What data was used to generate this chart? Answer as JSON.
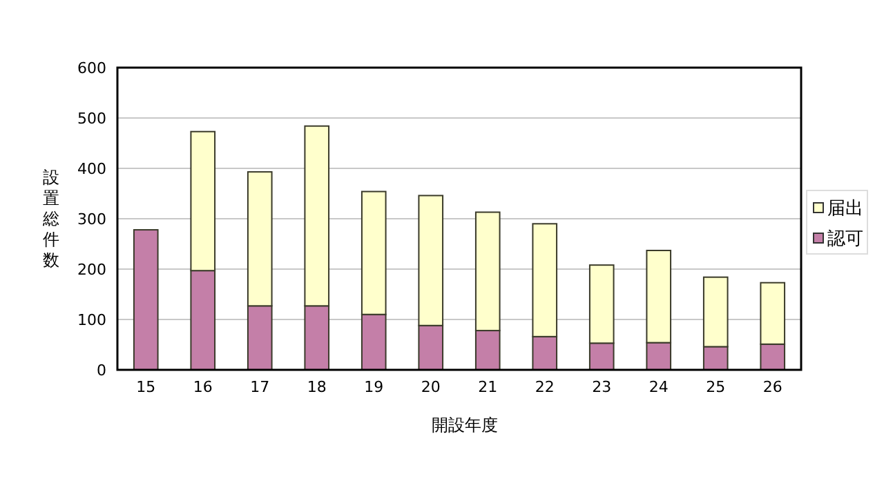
{
  "chart_data": {
    "type": "bar",
    "stacked": true,
    "xlabel": "開設年度",
    "ylabel": "設置総件数",
    "categories": [
      "15",
      "16",
      "17",
      "18",
      "19",
      "20",
      "21",
      "22",
      "23",
      "24",
      "25",
      "26"
    ],
    "series": [
      {
        "name": "認可",
        "color": "#c47fa8",
        "values": [
          278,
          197,
          127,
          127,
          110,
          88,
          78,
          66,
          53,
          54,
          46,
          51
        ]
      },
      {
        "name": "届出",
        "color": "#ffffcc",
        "values": [
          0,
          276,
          266,
          357,
          244,
          258,
          235,
          224,
          155,
          183,
          138,
          122
        ]
      }
    ],
    "ylim": [
      0,
      600
    ],
    "yticks": [
      0,
      100,
      200,
      300,
      400,
      500,
      600
    ],
    "grid": "y",
    "legend": "right"
  }
}
